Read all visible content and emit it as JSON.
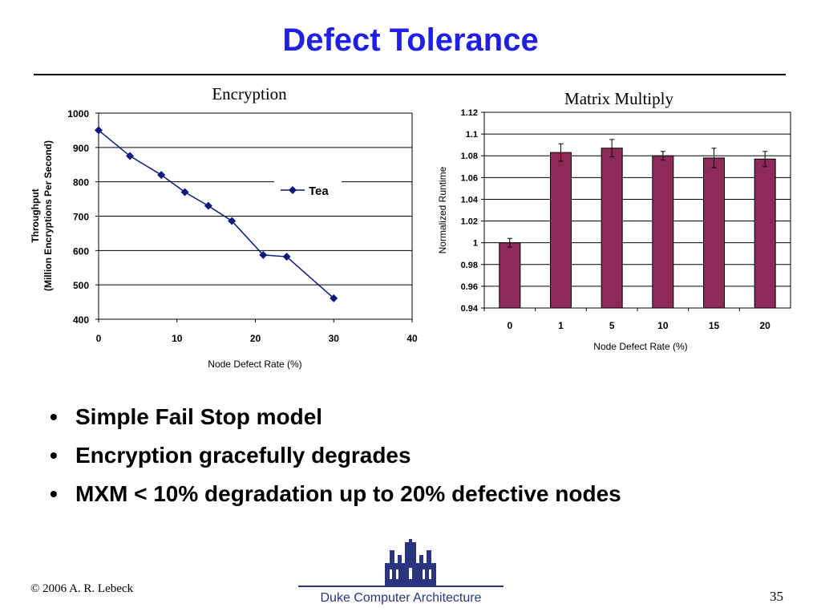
{
  "slide": {
    "title": "Defect Tolerance",
    "bullets": [
      "Simple Fail Stop model",
      "Encryption gracefully degrades",
      "MXM < 10% degradation up to 20% defective nodes"
    ],
    "footer_left": "© 2006 A. R. Lebeck",
    "footer_center": "Duke Computer Architecture",
    "page_number": "35",
    "colors": {
      "title": "#1f1fe6",
      "line_series": "#0a1a7a",
      "bar_fill": "#8e2a5a",
      "footer": "#2a3480"
    },
    "icons": {
      "logo": "duke-chapel-logo-icon",
      "bullet": "bullet-dot-icon"
    }
  },
  "chart_data": [
    {
      "type": "line",
      "title": "Encryption",
      "xlabel": "Node Defect Rate (%)",
      "ylabel_lines": [
        "Throughput",
        "(Million Encryptions Per Second)"
      ],
      "xlim": [
        0,
        40
      ],
      "ylim": [
        400,
        1000
      ],
      "xticks": [
        "0",
        "10",
        "20",
        "30",
        "40"
      ],
      "yticks": [
        "400",
        "500",
        "600",
        "700",
        "800",
        "900",
        "1000"
      ],
      "grid": "horizontal",
      "legend": "right-middle",
      "series": [
        {
          "name": "Tea",
          "x": [
            0,
            4,
            8,
            11,
            14,
            17,
            21,
            24,
            30
          ],
          "y": [
            950,
            875,
            820,
            770,
            730,
            686,
            587,
            582,
            461
          ]
        }
      ]
    },
    {
      "type": "bar",
      "title": "Matrix Multiply",
      "xlabel": "Node Defect Rate (%)",
      "ylabel": "Normalized Runtime",
      "categories": [
        "0",
        "1",
        "5",
        "10",
        "15",
        "20"
      ],
      "values": [
        1.0,
        1.083,
        1.087,
        1.08,
        1.078,
        1.077
      ],
      "error": [
        0.004,
        0.008,
        0.008,
        0.004,
        0.009,
        0.007
      ],
      "ylim": [
        0.94,
        1.12
      ],
      "yticks": [
        "0.94",
        "0.96",
        "0.98",
        "1",
        "1.02",
        "1.04",
        "1.06",
        "1.08",
        "1.1",
        "1.12"
      ],
      "grid": "horizontal"
    }
  ]
}
